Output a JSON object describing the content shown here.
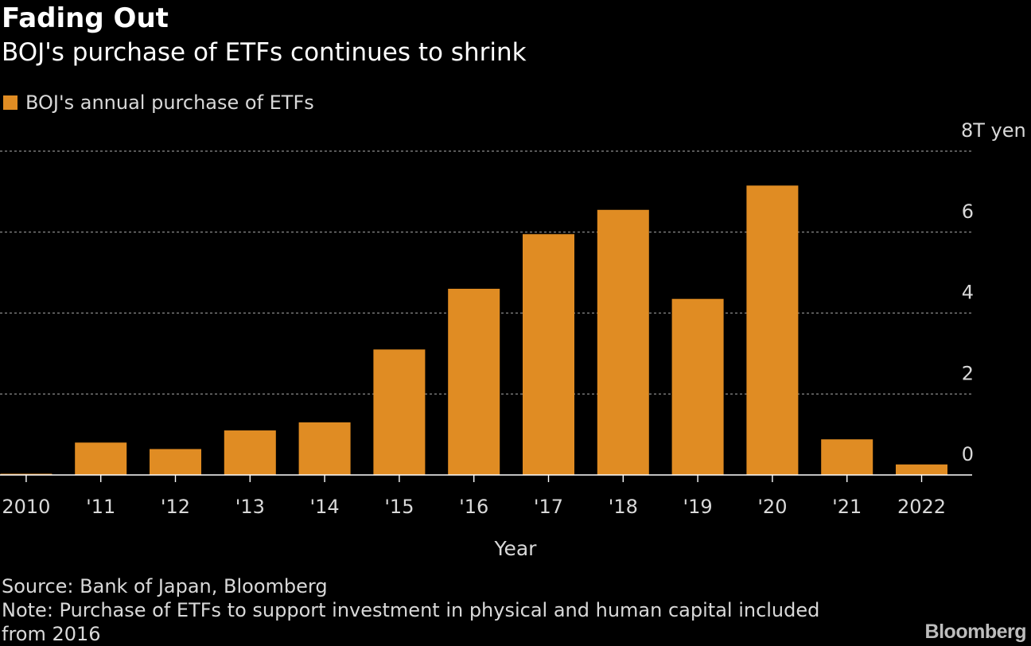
{
  "header": {
    "title": "Fading Out",
    "subtitle": "BOJ's purchase of ETFs continues to shrink"
  },
  "legend": {
    "label": "BOJ's annual purchase of ETFs",
    "color": "#e08c23"
  },
  "chart_data": {
    "type": "bar",
    "title": "Fading Out",
    "subtitle": "BOJ's purchase of ETFs continues to shrink",
    "xlabel": "Year",
    "ylabel": "",
    "y_unit_label": "8T yen",
    "ylim": [
      0,
      8
    ],
    "yticks": [
      0,
      2,
      4,
      6,
      8
    ],
    "ytick_labels": [
      "0",
      "2",
      "4",
      "6",
      "8T yen"
    ],
    "grid": true,
    "y_axis_side": "right",
    "legend_position": "top-left",
    "categories": [
      "2010",
      "'11",
      "'12",
      "'13",
      "'14",
      "'15",
      "'16",
      "'17",
      "'18",
      "'19",
      "'20",
      "'21",
      "2022"
    ],
    "series": [
      {
        "name": "BOJ's annual purchase of ETFs",
        "color": "#e08c23",
        "values": [
          0.03,
          0.8,
          0.64,
          1.1,
          1.3,
          3.1,
          4.6,
          5.95,
          6.55,
          4.35,
          7.15,
          0.88,
          0.26
        ]
      }
    ]
  },
  "footer": {
    "source": "Source: Bank of Japan, Bloomberg",
    "note_line1": "Note: Purchase of ETFs to support investment in physical and human capital included",
    "note_line2": "from 2016"
  },
  "brand": "Bloomberg",
  "colors": {
    "background": "#000000",
    "bar": "#e08c23",
    "gridline": "#8c8c8c",
    "text": "#ffffff",
    "muted_text": "#d9d9d9"
  }
}
